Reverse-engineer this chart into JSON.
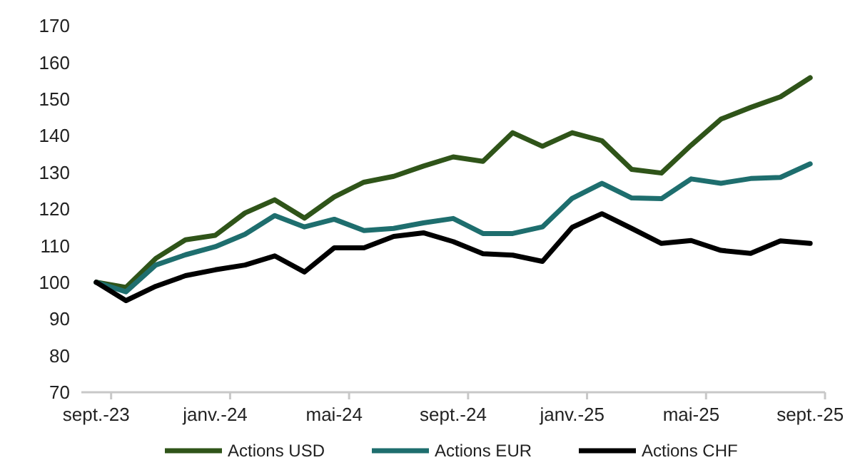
{
  "chart_data": {
    "type": "line",
    "categories": [
      "sept.-23",
      null,
      null,
      null,
      "janv.-24",
      null,
      null,
      null,
      "mai-24",
      null,
      null,
      null,
      "sept.-24",
      null,
      null,
      null,
      "janv.-25",
      null,
      null,
      null,
      "mai-25",
      null,
      null,
      null,
      "sept.-25"
    ],
    "series": [
      {
        "name": "Actions USD",
        "color": "#2f5419",
        "values": [
          100,
          98.6,
          106.5,
          111.6,
          112.8,
          118.9,
          122.5,
          117.5,
          123.3,
          127.3,
          128.9,
          131.7,
          134.2,
          133,
          140.8,
          137.1,
          140.8,
          138.6,
          130.8,
          129.8,
          137.4,
          144.5,
          147.7,
          150.6,
          155.8
        ]
      },
      {
        "name": "Actions EUR",
        "color": "#1e6e6e",
        "values": [
          100,
          97.4,
          104.7,
          107.5,
          109.7,
          113.1,
          118.2,
          115.1,
          117.2,
          114.1,
          114.7,
          116.2,
          117.4,
          113.3,
          113.3,
          115.1,
          122.9,
          127,
          123,
          122.8,
          128.2,
          127,
          128.3,
          128.6,
          132.3
        ]
      },
      {
        "name": "Actions CHF",
        "color": "#000000",
        "values": [
          100,
          95,
          98.9,
          101.8,
          103.4,
          104.7,
          107.2,
          102.8,
          109.4,
          109.4,
          112.5,
          113.5,
          111.1,
          107.8,
          107.4,
          105.7,
          115,
          118.7,
          114.7,
          110.6,
          111.4,
          108.7,
          107.9,
          111.3,
          110.6
        ]
      }
    ],
    "ylim": [
      70,
      170
    ],
    "yticks": [
      70,
      80,
      90,
      100,
      110,
      120,
      130,
      140,
      150,
      160,
      170
    ],
    "grid": false,
    "legend": "bottom",
    "marker": "none",
    "line_style": "solid"
  }
}
